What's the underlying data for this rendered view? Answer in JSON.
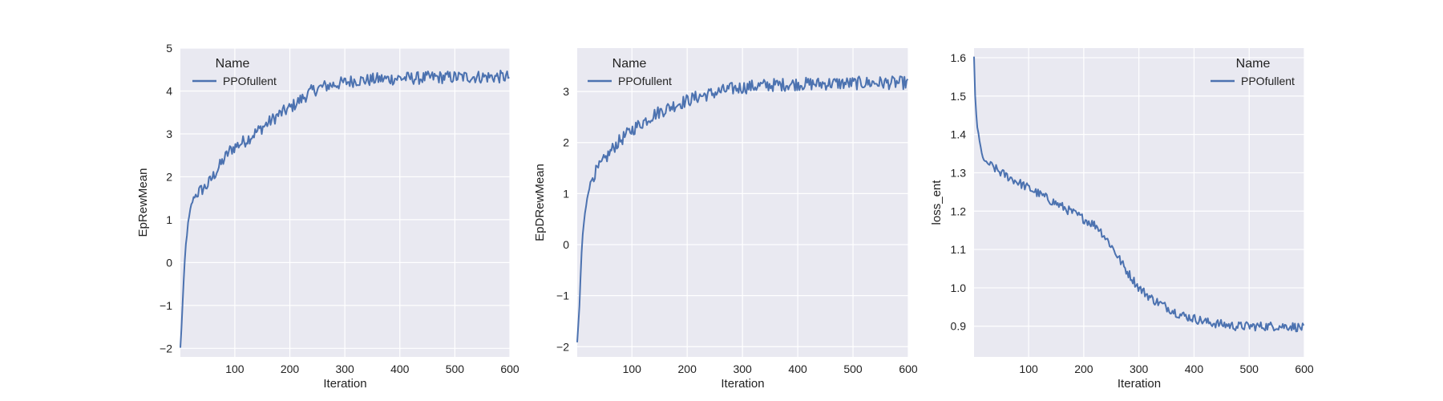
{
  "figure": {
    "legend_title": "Name",
    "series_name": "PPOfullent",
    "series_color": "#4c72b0",
    "background_color": "#e9e9f1",
    "grid_color": "#ffffff"
  },
  "chart_data": [
    {
      "type": "line",
      "xlabel": "Iteration",
      "ylabel": "EpRewMean",
      "xlim": [
        1,
        600
      ],
      "ylim": [
        -2.2,
        5
      ],
      "xticks": [
        100,
        200,
        300,
        400,
        500,
        600
      ],
      "yticks": [
        -2,
        -1,
        0,
        1,
        2,
        3,
        4,
        5
      ],
      "ytick_labels": [
        "−2",
        "−1",
        "0",
        "1",
        "2",
        "3",
        "4",
        "5"
      ],
      "grid": true,
      "legend_position": "top-left",
      "series": [
        {
          "name": "PPOfullent",
          "x": [
            1,
            5,
            10,
            15,
            20,
            25,
            30,
            40,
            50,
            60,
            70,
            80,
            90,
            100,
            120,
            140,
            160,
            180,
            200,
            220,
            240,
            260,
            280,
            300,
            320,
            340,
            360,
            380,
            400,
            420,
            440,
            460,
            480,
            500,
            520,
            540,
            560,
            580,
            600
          ],
          "y": [
            -2.0,
            -1.0,
            0.3,
            0.9,
            1.3,
            1.5,
            1.6,
            1.7,
            1.8,
            2.0,
            2.2,
            2.4,
            2.6,
            2.7,
            2.85,
            3.05,
            3.25,
            3.45,
            3.6,
            3.8,
            4.0,
            4.1,
            4.15,
            4.2,
            4.25,
            4.25,
            4.28,
            4.28,
            4.3,
            4.3,
            4.3,
            4.32,
            4.32,
            4.32,
            4.33,
            4.33,
            4.33,
            4.33,
            4.33
          ],
          "noise": 0.15
        }
      ]
    },
    {
      "type": "line",
      "xlabel": "Iteration",
      "ylabel": "EpDRewMean",
      "xlim": [
        1,
        600
      ],
      "ylim": [
        -2.2,
        3.85
      ],
      "xticks": [
        100,
        200,
        300,
        400,
        500,
        600
      ],
      "yticks": [
        -2,
        -1,
        0,
        1,
        2,
        3
      ],
      "ytick_labels": [
        "−2",
        "−1",
        "0",
        "1",
        "2",
        "3"
      ],
      "grid": true,
      "legend_position": "top-left",
      "series": [
        {
          "name": "PPOfullent",
          "x": [
            1,
            5,
            10,
            15,
            20,
            25,
            30,
            40,
            50,
            60,
            70,
            80,
            90,
            100,
            120,
            140,
            160,
            180,
            200,
            220,
            240,
            260,
            280,
            300,
            320,
            340,
            360,
            380,
            400,
            420,
            440,
            460,
            480,
            500,
            520,
            540,
            560,
            580,
            600
          ],
          "y": [
            -1.95,
            -1.2,
            0.1,
            0.6,
            1.0,
            1.2,
            1.35,
            1.5,
            1.65,
            1.8,
            1.95,
            2.05,
            2.15,
            2.25,
            2.4,
            2.55,
            2.65,
            2.75,
            2.82,
            2.9,
            2.95,
            3.0,
            3.05,
            3.08,
            3.1,
            3.12,
            3.13,
            3.14,
            3.15,
            3.15,
            3.15,
            3.16,
            3.16,
            3.16,
            3.17,
            3.17,
            3.17,
            3.17,
            3.17
          ],
          "noise": 0.13
        }
      ]
    },
    {
      "type": "line",
      "xlabel": "Iteration",
      "ylabel": "loss_ent",
      "xlim": [
        1,
        600
      ],
      "ylim": [
        0.82,
        1.625
      ],
      "xticks": [
        100,
        200,
        300,
        400,
        500,
        600
      ],
      "yticks": [
        0.9,
        1.0,
        1.1,
        1.2,
        1.3,
        1.4,
        1.5,
        1.6
      ],
      "ytick_labels": [
        "0.9",
        "1.0",
        "1.1",
        "1.2",
        "1.3",
        "1.4",
        "1.5",
        "1.6"
      ],
      "grid": true,
      "legend_position": "top-right",
      "series": [
        {
          "name": "PPOfullent",
          "x": [
            1,
            3,
            6,
            10,
            15,
            20,
            30,
            50,
            75,
            100,
            125,
            150,
            175,
            200,
            225,
            250,
            275,
            300,
            325,
            350,
            375,
            400,
            425,
            450,
            475,
            500,
            525,
            550,
            575,
            600
          ],
          "y": [
            1.6,
            1.5,
            1.43,
            1.39,
            1.35,
            1.33,
            1.32,
            1.3,
            1.28,
            1.26,
            1.24,
            1.22,
            1.2,
            1.18,
            1.16,
            1.11,
            1.05,
            1.0,
            0.97,
            0.95,
            0.93,
            0.92,
            0.91,
            0.905,
            0.9,
            0.9,
            0.9,
            0.9,
            0.9,
            0.895
          ],
          "noise": 0.012
        }
      ]
    }
  ]
}
